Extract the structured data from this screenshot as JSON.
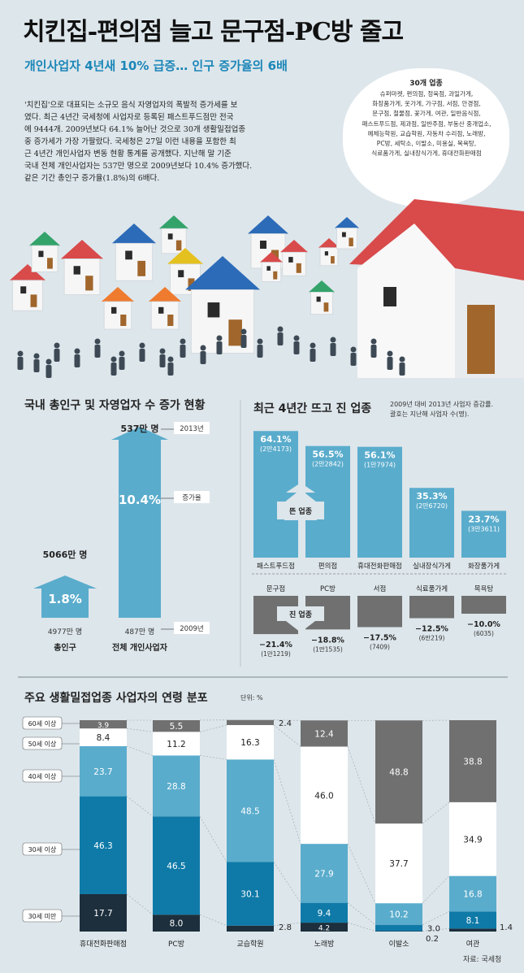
{
  "header": {
    "title": "치킨집-편의점 늘고 문구점-PC방 줄고",
    "subtitle": "개인사업자 4년새 10% 급증… 인구 증가율의 6배",
    "body_lines": [
      "'치킨집'으로 대표되는 소규모 음식 자영업자의 폭발적 증가세를 보",
      "였다. 최근 4년간 국세청에 사업자로 등록된 패스트푸드점만 전국",
      "에 9444개. 2009년보다 64.1% 늘어난 것으로 30개 생활밀접업종",
      "중 증가세가 가장 가팔랐다. 국세청은 27일 이런 내용을 포함한 최",
      "근 4년간 개인사업자 변동 현황 통계를 공개했다. 지난해 말 기준",
      "국내 전체 개인사업자는 537만 명으로 2009년보다 10.4% 증가했다.",
      "같은 기간 총인구 증가율(1.8%)의 6배다."
    ]
  },
  "cloud": {
    "title": "30개 업종",
    "lines": [
      "슈퍼마켓, 편의점, 정육점, 과일가게,",
      "화장품가게, 옷가게, 가구점, 서점, 안경점,",
      "문구점, 철물점, 꽃가게, 여관, 일반음식점,",
      "패스트푸드점, 제과점, 일반주점, 부동산 중개업소,",
      "예체능학원, 교습학원, 자동차 수리점, 노래방,",
      "PC방, 세탁소, 이발소, 미용실, 목욕탕,",
      "식료품가게, 실내장식가게, 휴대전화판매점"
    ]
  },
  "sections": {
    "population": "국내 총인구 및 자영업자 수 증가 현황",
    "industries": "최근 4년간 뜨고 진 업종",
    "industries_note_1": "2009년 대비 2013년 사업자 증감률.",
    "industries_note_2": "괄호는 지난해 사업자 수(명).",
    "age": "주요 생활밀접업종 사업자의 연령 분포",
    "age_unit": "단위: %",
    "source": "자료: 국세청"
  },
  "chart_data": [
    {
      "type": "bar",
      "title": "국내 총인구 및 자영업자 수 증가 현황",
      "categories": [
        "총인구",
        "전체 개인사업자"
      ],
      "start_labels": [
        "4977만 명",
        "487만 명"
      ],
      "end_labels": [
        "5066만 명",
        "537만 명"
      ],
      "growth_values": [
        1.8,
        10.4
      ],
      "growth_labels": [
        "1.8%",
        "10.4%"
      ],
      "annotations": {
        "start_year": "2009년",
        "end_year": "2013년",
        "growth": "증가율"
      }
    },
    {
      "type": "bar",
      "title": "최근 4년간 뜨고 진 업종",
      "rising_label": "뜬 업종",
      "falling_label": "진 업종",
      "rising": [
        {
          "name": "패스트푸드점",
          "value": 64.1,
          "label": "64.1%",
          "count": "(2만4173)"
        },
        {
          "name": "편의점",
          "value": 56.5,
          "label": "56.5%",
          "count": "(2만2842)"
        },
        {
          "name": "휴대전화판매점",
          "value": 56.1,
          "label": "56.1%",
          "count": "(1만7974)"
        },
        {
          "name": "실내장식가게",
          "value": 35.3,
          "label": "35.3%",
          "count": "(2만6720)"
        },
        {
          "name": "화장품가게",
          "value": 23.7,
          "label": "23.7%",
          "count": "(3만3611)"
        }
      ],
      "falling": [
        {
          "name": "문구점",
          "value": -21.4,
          "label": "−21.4%",
          "count": "(1만1219)"
        },
        {
          "name": "PC방",
          "value": -18.8,
          "label": "−18.8%",
          "count": "(1만1535)"
        },
        {
          "name": "서점",
          "value": -17.5,
          "label": "−17.5%",
          "count": "(7409)"
        },
        {
          "name": "식료품가게",
          "value": -12.5,
          "label": "−12.5%",
          "count": "(6만219)"
        },
        {
          "name": "목욕탕",
          "value": -10.0,
          "label": "−10.0%",
          "count": "(6035)"
        }
      ]
    },
    {
      "type": "bar",
      "title": "주요 생활밀접업종 사업자의 연령 분포",
      "unit": "단위: %",
      "categories": [
        "휴대전화판매점",
        "PC방",
        "교습학원",
        "노래방",
        "이발소",
        "여관"
      ],
      "series": [
        {
          "name": "30세 미만",
          "values": [
            17.7,
            8.0,
            2.8,
            4.2,
            0.2,
            1.4
          ],
          "labels": [
            "17.7",
            "8.0",
            "2.8",
            "4.2",
            "0.2",
            "1.4"
          ],
          "color": "#1d2f3d"
        },
        {
          "name": "30세 이상",
          "values": [
            46.3,
            46.5,
            30.1,
            9.4,
            3.0,
            8.1
          ],
          "labels": [
            "46.3",
            "46.5",
            "30.1",
            "9.4",
            "3.0",
            "8.1"
          ],
          "color": "#0f7aa8"
        },
        {
          "name": "40세 이상",
          "values": [
            23.7,
            28.8,
            48.5,
            27.9,
            10.2,
            16.8
          ],
          "labels": [
            "23.7",
            "28.8",
            "48.5",
            "27.9",
            "10.2",
            "16.8"
          ],
          "color": "#5aaccc"
        },
        {
          "name": "50세 이상",
          "values": [
            8.4,
            11.2,
            16.3,
            46.0,
            37.7,
            34.9
          ],
          "labels": [
            "8.4",
            "11.2",
            "16.3",
            "46.0",
            "37.7",
            "34.9"
          ],
          "color": "#ffffff"
        },
        {
          "name": "60세 이상",
          "values": [
            3.9,
            5.5,
            2.4,
            12.4,
            48.8,
            38.8
          ],
          "labels": [
            "3.9",
            "5.5",
            "2.4",
            "12.4",
            "48.8",
            "38.8"
          ],
          "color": "#707070"
        }
      ]
    }
  ],
  "colors": {
    "accent": "#1b86b8",
    "bar": "#5aaccc",
    "falling": "#707070",
    "background": "#dde6eb"
  }
}
